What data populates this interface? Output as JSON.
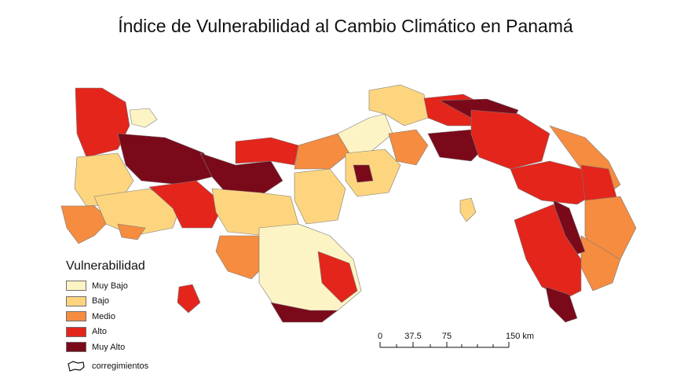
{
  "title": "Índice de Vulnerabilidad al Cambio Climático en Panamá",
  "colors": {
    "muy_bajo": "#fdf4c6",
    "bajo": "#fdd57f",
    "medio": "#f58c3f",
    "alto": "#e3251b",
    "muy_alto": "#7a0a1a",
    "boundary": "#7a7a7a",
    "sea": "#ffffff"
  },
  "legend": {
    "title": "Vulnerabilidad",
    "items": [
      {
        "label": "Muy Bajo",
        "color": "#fdf4c6"
      },
      {
        "label": "Bajo",
        "color": "#fdd57f"
      },
      {
        "label": "Medio",
        "color": "#f58c3f"
      },
      {
        "label": "Alto",
        "color": "#e3251b"
      },
      {
        "label": "Muy Alto",
        "color": "#7a0a1a"
      }
    ],
    "boundary_label": "corregimientos",
    "boundary_icon": "outline-shape-icon"
  },
  "scale": {
    "ticks": [
      "0",
      "37.5",
      "75",
      "150 km"
    ]
  }
}
